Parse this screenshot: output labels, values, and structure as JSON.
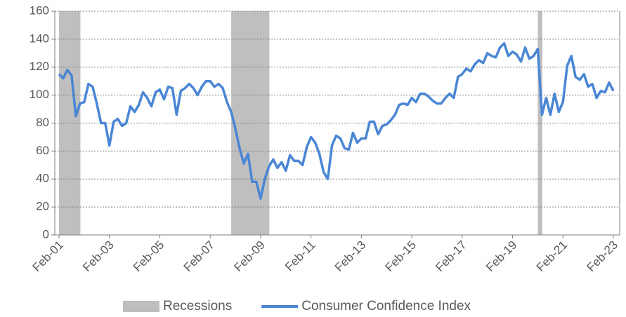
{
  "chart_data": {
    "type": "line",
    "categories": [
      "Feb-01",
      null,
      null,
      null,
      null,
      null,
      null,
      null,
      null,
      null,
      null,
      null,
      "Feb-03",
      null,
      null,
      null,
      null,
      null,
      null,
      null,
      null,
      null,
      null,
      null,
      "Feb-05",
      null,
      null,
      null,
      null,
      null,
      null,
      null,
      null,
      null,
      null,
      null,
      "Feb-07",
      null,
      null,
      null,
      null,
      null,
      null,
      null,
      null,
      null,
      null,
      null,
      "Feb-09",
      null,
      null,
      null,
      null,
      null,
      null,
      null,
      null,
      null,
      null,
      null,
      "Feb-11",
      null,
      null,
      null,
      null,
      null,
      null,
      null,
      null,
      null,
      null,
      null,
      "Feb-13",
      null,
      null,
      null,
      null,
      null,
      null,
      null,
      null,
      null,
      null,
      null,
      "Feb-15",
      null,
      null,
      null,
      null,
      null,
      null,
      null,
      null,
      null,
      null,
      null,
      "Feb-17",
      null,
      null,
      null,
      null,
      null,
      null,
      null,
      null,
      null,
      null,
      null,
      "Feb-19",
      null,
      null,
      null,
      null,
      null,
      null,
      null,
      null,
      null,
      null,
      null,
      "Feb-21",
      null,
      null,
      null,
      null,
      null,
      null,
      null,
      null,
      null,
      null,
      null,
      "Feb-23"
    ],
    "series": [
      {
        "name": "Recessions",
        "type": "bar",
        "color": "#bfbfbf",
        "values": [
          160,
          160,
          160,
          160,
          160,
          null,
          null,
          null,
          null,
          null,
          null,
          null,
          null,
          null,
          null,
          null,
          null,
          null,
          null,
          null,
          null,
          null,
          null,
          null,
          null,
          null,
          null,
          null,
          null,
          null,
          null,
          null,
          null,
          null,
          null,
          null,
          null,
          null,
          null,
          null,
          null,
          160,
          160,
          160,
          160,
          160,
          160,
          160,
          160,
          160,
          null,
          null,
          null,
          null,
          null,
          null,
          null,
          null,
          null,
          null,
          null,
          null,
          null,
          null,
          null,
          null,
          null,
          null,
          null,
          null,
          null,
          null,
          null,
          null,
          null,
          null,
          null,
          null,
          null,
          null,
          null,
          null,
          null,
          null,
          null,
          null,
          null,
          null,
          null,
          null,
          null,
          null,
          null,
          null,
          null,
          null,
          null,
          null,
          null,
          null,
          null,
          null,
          null,
          null,
          null,
          null,
          null,
          null,
          null,
          null,
          null,
          null,
          null,
          null,
          160,
          null,
          null,
          null,
          null,
          null,
          null,
          null,
          null,
          null,
          null,
          null,
          null,
          null,
          null,
          null,
          null,
          null,
          null
        ]
      },
      {
        "name": "Consumer Confidence Index",
        "type": "line",
        "color": "#4a86d4",
        "values": [
          115,
          112,
          118,
          114,
          85,
          94,
          95,
          108,
          106,
          94,
          80,
          80,
          64,
          81,
          83,
          78,
          80,
          92,
          88,
          93,
          102,
          98,
          92,
          102,
          104,
          97,
          106,
          105,
          86,
          103,
          105,
          108,
          105,
          100,
          106,
          110,
          110,
          106,
          108,
          105,
          95,
          88,
          76,
          62,
          51,
          58,
          38,
          38,
          26,
          40,
          49,
          54,
          48,
          52,
          46,
          57,
          53,
          53,
          50,
          63,
          70,
          66,
          58,
          45,
          40,
          64,
          71,
          69,
          62,
          61,
          73,
          66,
          69,
          69,
          81,
          81,
          72,
          78,
          79,
          82,
          86,
          93,
          94,
          93,
          98,
          95,
          101,
          101,
          99,
          96,
          94,
          94,
          98,
          101,
          98,
          113,
          115,
          119,
          117,
          122,
          125,
          123,
          130,
          128,
          127,
          134,
          137,
          128,
          131,
          129,
          124,
          134,
          126,
          128,
          133,
          86,
          98,
          86,
          101,
          88,
          95,
          121,
          128,
          113,
          111,
          115,
          106,
          108,
          98,
          103,
          102,
          109,
          103
        ]
      }
    ],
    "ylim": [
      0,
      160
    ],
    "yticks": [
      0,
      20,
      40,
      60,
      80,
      100,
      120,
      140,
      160
    ],
    "grid": true,
    "legend": "bottom"
  }
}
